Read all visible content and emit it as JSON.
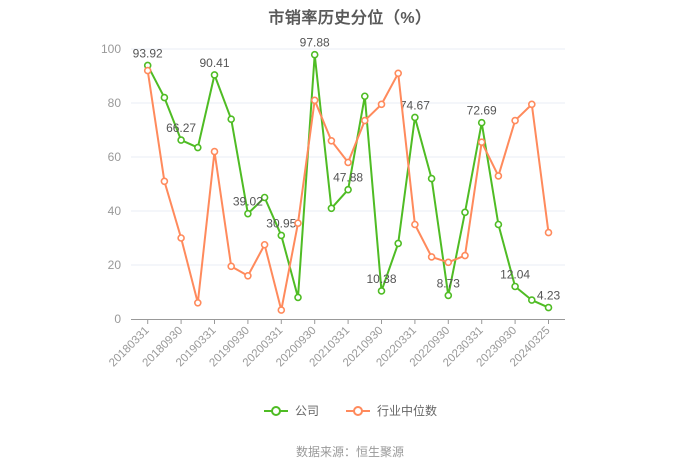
{
  "chart_data": {
    "type": "line",
    "title": "市销率历史分位（%）",
    "categories": [
      "20180331",
      "20180930",
      "20190331",
      "20190930",
      "20200331",
      "20200930",
      "20210331",
      "20210930",
      "20220331",
      "20220930",
      "20230331",
      "20230930",
      "20240325"
    ],
    "point_count": 25,
    "note": "25 quarterly points; x tick labels shown every 2nd point; company series labels shown at tick points",
    "ylim": [
      0,
      100
    ],
    "yticks": [
      0,
      20,
      40,
      60,
      80,
      100
    ],
    "grid": "horizontal",
    "legend_position": "bottom",
    "axis_color": "#999999",
    "grid_color": "#e9edf4",
    "label_color": "#555555",
    "series": [
      {
        "name": "公司",
        "color": "#4fbc24",
        "values": [
          93.92,
          82,
          66.27,
          63.5,
          90.41,
          74,
          39.02,
          45,
          30.95,
          8,
          97.88,
          41,
          47.88,
          82.5,
          10.38,
          28,
          74.67,
          52,
          8.73,
          39.5,
          72.69,
          35,
          12.04,
          7,
          4.23
        ],
        "point_labels": [
          "93.92",
          "66.27",
          "90.41",
          "39.02",
          "30.95",
          "97.88",
          "47.88",
          "10.38",
          "74.67",
          "8.73",
          "72.69",
          "12.04",
          "4.23"
        ]
      },
      {
        "name": "行业中位数",
        "color": "#ff8a5c",
        "values": [
          92,
          51,
          30,
          6,
          62,
          19.5,
          16,
          27.5,
          3.3,
          35.5,
          81,
          66,
          58,
          73.5,
          79.5,
          91,
          35,
          23,
          21,
          23.5,
          65.5,
          53,
          73.5,
          79.5,
          32
        ],
        "point_labels": []
      }
    ]
  },
  "legend": {
    "company": "公司",
    "industry": "行业中位数"
  },
  "source_text": "数据来源：恒生聚源"
}
